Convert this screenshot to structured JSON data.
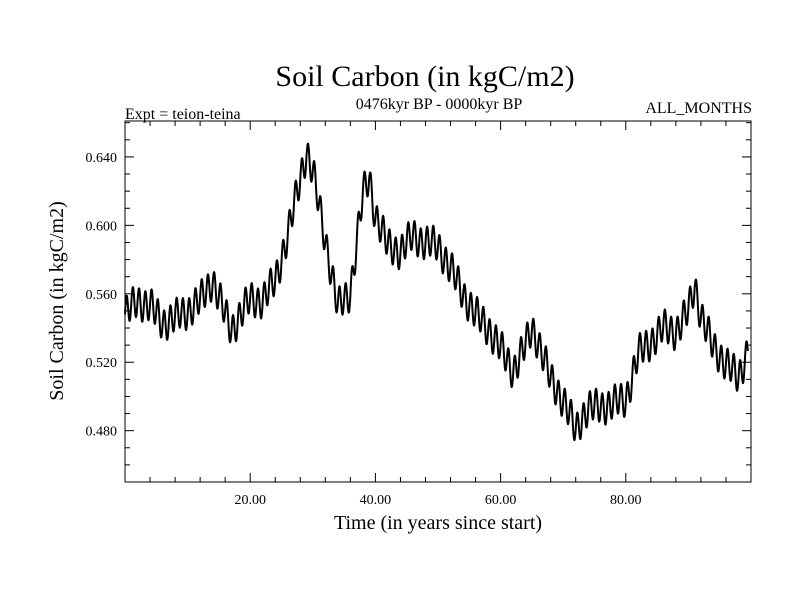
{
  "chart_data": {
    "type": "line",
    "title": "Soil Carbon (in kgC/m2)",
    "subtitle": "0476kyr BP - 0000kyr BP",
    "left_note": "Expt = teion-teina",
    "right_note": "ALL_MONTHS",
    "xlabel": "Time (in years since start)",
    "ylabel": "Soil Carbon (in kgC/m2)",
    "xlim": [
      0,
      100
    ],
    "ylim": [
      0.45,
      0.661
    ],
    "xticks": [
      20,
      40,
      60,
      80
    ],
    "xtick_labels": [
      "20.00",
      "40.00",
      "60.00",
      "80.00"
    ],
    "yticks": [
      0.48,
      0.52,
      0.56,
      0.6,
      0.64
    ],
    "ytick_labels": [
      "0.480",
      "0.520",
      "0.560",
      "0.600",
      "0.640"
    ],
    "series": [
      {
        "name": "Soil Carbon",
        "color": "#000000",
        "oscillation_amplitude": 0.009,
        "oscillation_period": 1.0,
        "trend_x": [
          0,
          2,
          4,
          6,
          8,
          10,
          12,
          14,
          16,
          17,
          20,
          22,
          24,
          26,
          28,
          29,
          30,
          32,
          34,
          36,
          38,
          39,
          40,
          42,
          44,
          46,
          48,
          50,
          52,
          54,
          56,
          58,
          60,
          62,
          64,
          65,
          66,
          68,
          70,
          72,
          73,
          74,
          76,
          78,
          80,
          82,
          84,
          86,
          88,
          90,
          91,
          92,
          94,
          96,
          98,
          99.5
        ],
        "trend_y": [
          0.548,
          0.556,
          0.553,
          0.543,
          0.546,
          0.55,
          0.556,
          0.568,
          0.548,
          0.539,
          0.557,
          0.556,
          0.568,
          0.594,
          0.628,
          0.643,
          0.631,
          0.592,
          0.552,
          0.561,
          0.618,
          0.628,
          0.606,
          0.588,
          0.585,
          0.594,
          0.59,
          0.588,
          0.575,
          0.56,
          0.548,
          0.54,
          0.528,
          0.515,
          0.53,
          0.54,
          0.532,
          0.51,
          0.498,
          0.48,
          0.488,
          0.493,
          0.494,
          0.496,
          0.498,
          0.525,
          0.532,
          0.54,
          0.538,
          0.55,
          0.565,
          0.548,
          0.528,
          0.52,
          0.51,
          0.528
        ]
      }
    ]
  }
}
